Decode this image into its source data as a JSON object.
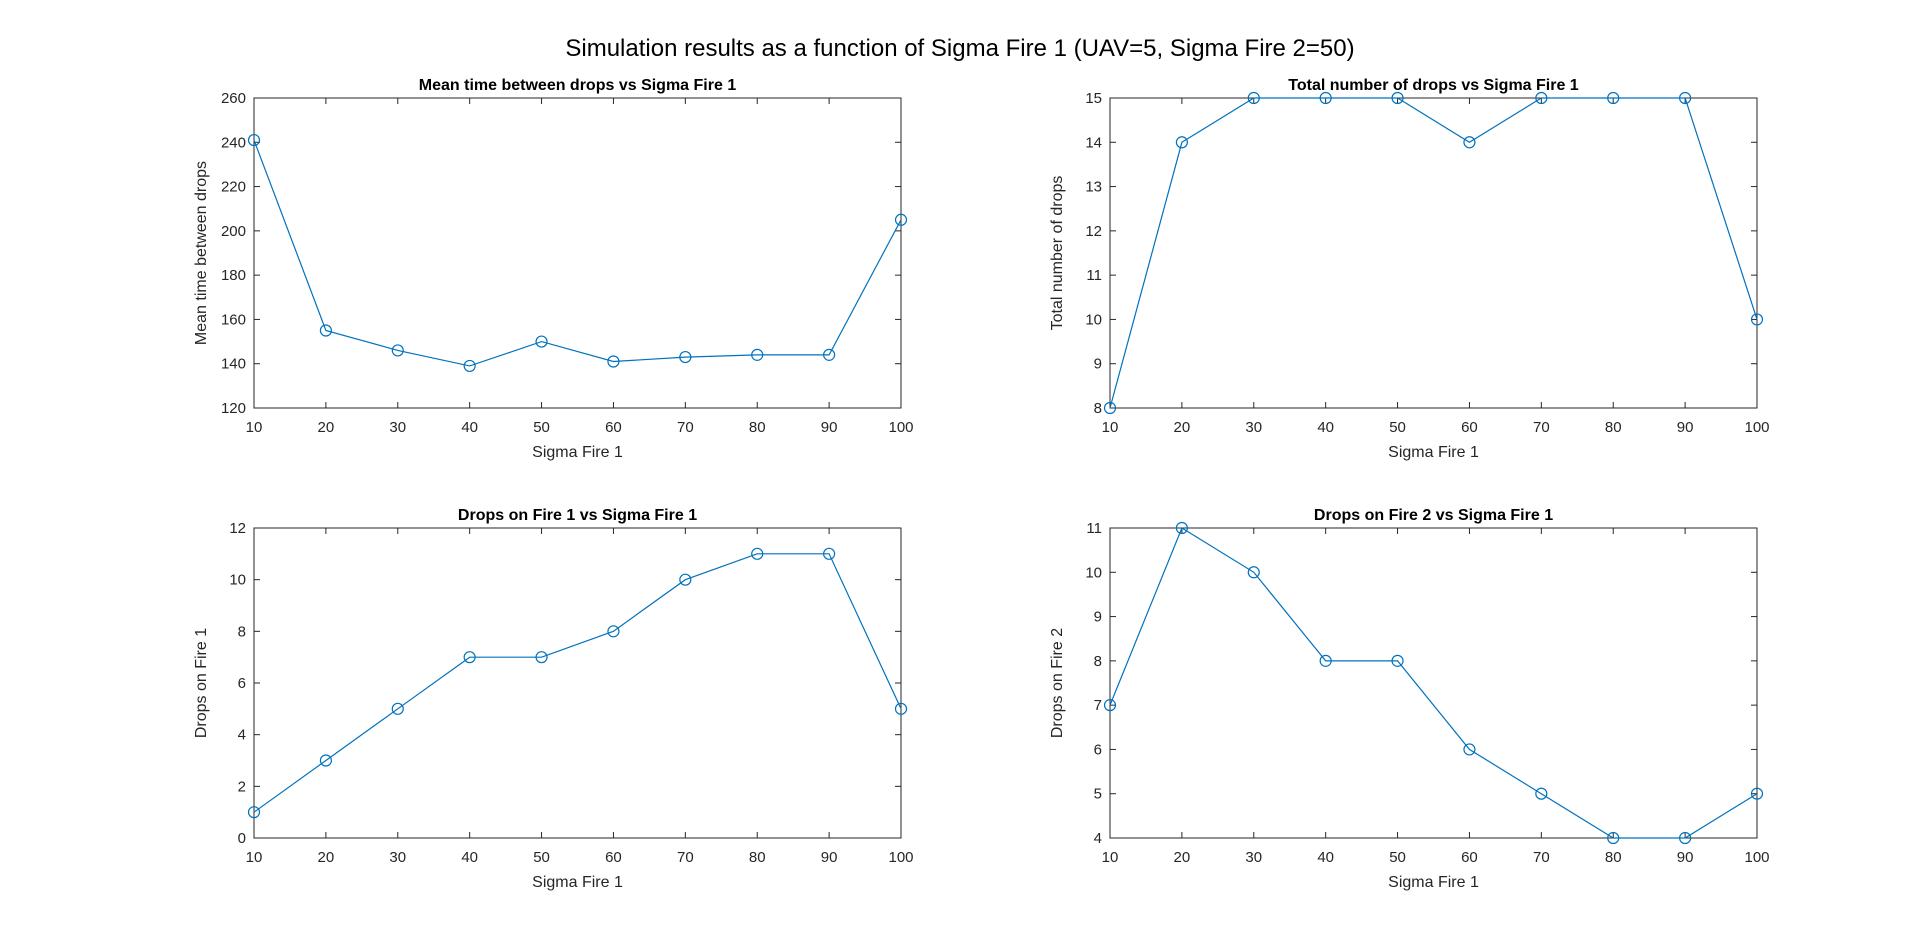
{
  "figure": {
    "title": "Simulation results as a function of Sigma Fire 1 (UAV=5, Sigma Fire 2=50)"
  },
  "colors": {
    "series": "#0072BD",
    "axes": "#262626"
  },
  "chart_data": [
    {
      "type": "line",
      "title": "Mean time between drops vs Sigma Fire 1",
      "xlabel": "Sigma Fire 1",
      "ylabel": "Mean time between drops",
      "x": [
        10,
        20,
        30,
        40,
        50,
        60,
        70,
        80,
        90,
        100
      ],
      "y": [
        241,
        155,
        146,
        139,
        150,
        141,
        143,
        144,
        144,
        205
      ],
      "xlim": [
        10,
        100
      ],
      "ylim": [
        120,
        260
      ],
      "xticks": [
        10,
        20,
        30,
        40,
        50,
        60,
        70,
        80,
        90,
        100
      ],
      "yticks": [
        120,
        140,
        160,
        180,
        200,
        220,
        240,
        260
      ],
      "marker": "o",
      "grid": false
    },
    {
      "type": "line",
      "title": "Total number of drops vs Sigma Fire 1",
      "xlabel": "Sigma Fire 1",
      "ylabel": "Total number of drops",
      "x": [
        10,
        20,
        30,
        40,
        50,
        60,
        70,
        80,
        90,
        100
      ],
      "y": [
        8,
        14,
        15,
        15,
        15,
        14,
        15,
        15,
        15,
        10
      ],
      "xlim": [
        10,
        100
      ],
      "ylim": [
        8,
        15
      ],
      "xticks": [
        10,
        20,
        30,
        40,
        50,
        60,
        70,
        80,
        90,
        100
      ],
      "yticks": [
        8,
        9,
        10,
        11,
        12,
        13,
        14,
        15
      ],
      "marker": "o",
      "grid": false
    },
    {
      "type": "line",
      "title": "Drops on Fire 1 vs Sigma Fire 1",
      "xlabel": "Sigma Fire 1",
      "ylabel": "Drops on Fire 1",
      "x": [
        10,
        20,
        30,
        40,
        50,
        60,
        70,
        80,
        90,
        100
      ],
      "y": [
        1,
        3,
        5,
        7,
        7,
        8,
        10,
        11,
        11,
        5
      ],
      "xlim": [
        10,
        100
      ],
      "ylim": [
        0,
        12
      ],
      "xticks": [
        10,
        20,
        30,
        40,
        50,
        60,
        70,
        80,
        90,
        100
      ],
      "yticks": [
        0,
        2,
        4,
        6,
        8,
        10,
        12
      ],
      "marker": "o",
      "grid": false
    },
    {
      "type": "line",
      "title": "Drops on Fire 2 vs Sigma Fire 1",
      "xlabel": "Sigma Fire 1",
      "ylabel": "Drops on Fire 2",
      "x": [
        10,
        20,
        30,
        40,
        50,
        60,
        70,
        80,
        90,
        100
      ],
      "y": [
        7,
        11,
        10,
        8,
        8,
        6,
        5,
        4,
        4,
        5
      ],
      "xlim": [
        10,
        100
      ],
      "ylim": [
        4,
        11
      ],
      "xticks": [
        10,
        20,
        30,
        40,
        50,
        60,
        70,
        80,
        90,
        100
      ],
      "yticks": [
        4,
        5,
        6,
        7,
        8,
        9,
        10,
        11
      ],
      "marker": "o",
      "grid": false
    }
  ]
}
